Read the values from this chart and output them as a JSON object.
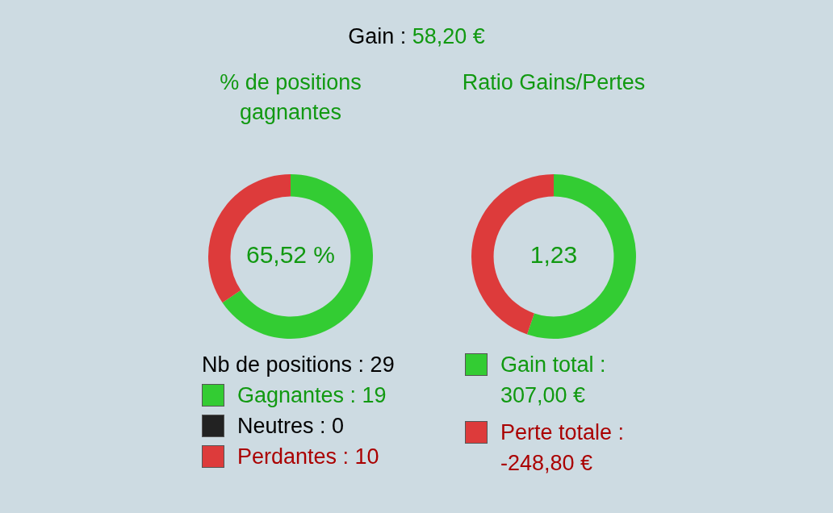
{
  "chart_data": [
    {
      "type": "other",
      "annotations": [
        "Gain :",
        "58,20 €"
      ]
    },
    {
      "type": "donut",
      "title": "% de positions gagnantes",
      "legend_title": "Nb de positions : 29",
      "categories": [
        "Gagnantes : 19",
        "Neutres : 0",
        "Perdantes : 10"
      ],
      "values": [
        65.52,
        0,
        34.48
      ],
      "colors": [
        "#33cc33",
        "#222222",
        "#dd3b3b"
      ],
      "legend": "bottom",
      "annotations": [
        "65,52 %"
      ]
    },
    {
      "type": "donut",
      "title": "Ratio Gains/Pertes",
      "categories": [
        "Gain total : 307,00 €",
        "Perte totale : -248,80 €"
      ],
      "values": [
        55.24,
        44.76
      ],
      "colors": [
        "#33cc33",
        "#dd3b3b"
      ],
      "legend": "bottom",
      "annotations": [
        "1,23"
      ]
    }
  ]
}
